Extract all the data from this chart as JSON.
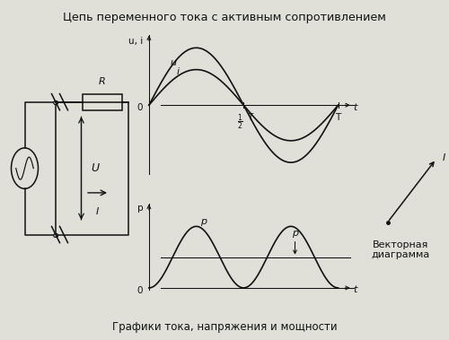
{
  "title": "Цепь переменного тока с активным сопротивлением",
  "bg_color": "#e0e0d8",
  "caption": "Графики тока, напряжения и мощности",
  "vector_label": "Векторная\nдиаграмма",
  "label_ui": "u, i",
  "label_p_axis": "p",
  "label_u": "u",
  "label_i": "i",
  "label_p_peak": "p",
  "label_p_avg": "p",
  "label_U_vec": "U",
  "label_I_vec": "I",
  "label_R": "R",
  "label_curr": "I",
  "label_volt": "U",
  "label_zero1": "0",
  "label_zero2": "0",
  "label_T": "T",
  "label_t1": "t",
  "label_t2": "t",
  "u_amplitude": 1.0,
  "i_amplitude": 0.62,
  "line_color": "#111111",
  "bg_color_light": "#eeeee8"
}
